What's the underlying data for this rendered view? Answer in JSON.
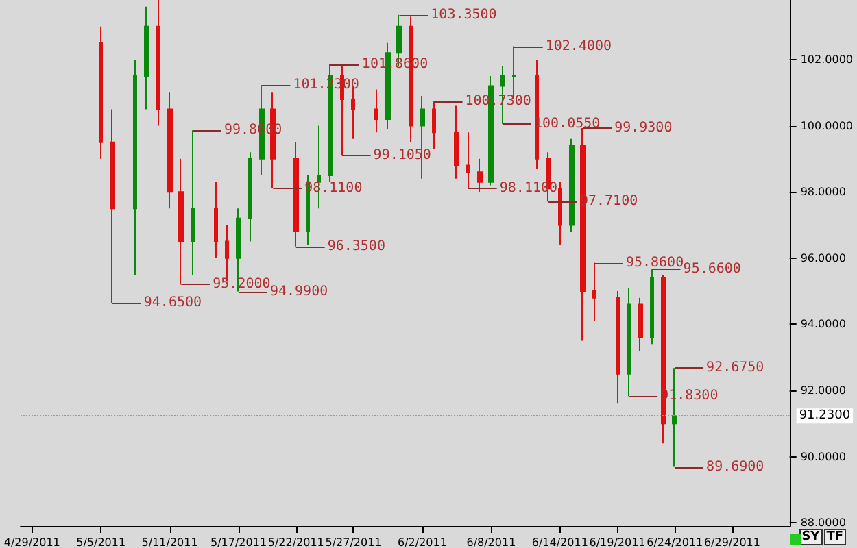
{
  "chart_data": {
    "type": "candlestick",
    "x": [
      "2011-05-05",
      "2011-05-06",
      "2011-05-08",
      "2011-05-09",
      "2011-05-10",
      "2011-05-11",
      "2011-05-12",
      "2011-05-13",
      "2011-05-15",
      "2011-05-16",
      "2011-05-17",
      "2011-05-18",
      "2011-05-19",
      "2011-05-20",
      "2011-05-22",
      "2011-05-23",
      "2011-05-24",
      "2011-05-25",
      "2011-05-26",
      "2011-05-27",
      "2011-05-29",
      "2011-05-30",
      "2011-05-31",
      "2011-06-01",
      "2011-06-02",
      "2011-06-03",
      "2011-06-05",
      "2011-06-06",
      "2011-06-07",
      "2011-06-08",
      "2011-06-09",
      "2011-06-10",
      "2011-06-12",
      "2011-06-13",
      "2011-06-14",
      "2011-06-15",
      "2011-06-16",
      "2011-06-17",
      "2011-06-19",
      "2011-06-20",
      "2011-06-21",
      "2011-06-22",
      "2011-06-23",
      "2011-06-24"
    ],
    "ohlc": [
      [
        102.5,
        103.0,
        99.0,
        99.5
      ],
      [
        99.5,
        100.5,
        94.65,
        97.5
      ],
      [
        97.5,
        102.0,
        95.5,
        101.5
      ],
      [
        101.5,
        103.6,
        100.5,
        103.0
      ],
      [
        103.0,
        103.8,
        100.0,
        100.5
      ],
      [
        100.5,
        101.0,
        97.5,
        98.0
      ],
      [
        98.0,
        99.0,
        95.2,
        96.5
      ],
      [
        96.5,
        99.86,
        95.5,
        97.5
      ],
      [
        97.5,
        98.3,
        96.0,
        96.5
      ],
      [
        96.5,
        97.0,
        95.3,
        96.0
      ],
      [
        96.0,
        97.5,
        94.99,
        97.2
      ],
      [
        97.2,
        99.2,
        96.5,
        99.0
      ],
      [
        99.0,
        101.23,
        98.5,
        100.5
      ],
      [
        100.5,
        101.0,
        98.11,
        99.0
      ],
      [
        99.0,
        99.5,
        96.35,
        96.8
      ],
      [
        96.8,
        98.5,
        96.4,
        98.3
      ],
      [
        98.3,
        100.0,
        97.5,
        98.5
      ],
      [
        98.5,
        101.86,
        98.3,
        101.5
      ],
      [
        101.5,
        101.8,
        99.105,
        100.8
      ],
      [
        100.8,
        101.2,
        99.6,
        100.5
      ],
      [
        100.5,
        101.1,
        99.8,
        100.2
      ],
      [
        100.2,
        102.5,
        99.9,
        102.2
      ],
      [
        102.2,
        103.35,
        101.8,
        103.0
      ],
      [
        103.0,
        103.3,
        99.5,
        100.0
      ],
      [
        100.0,
        100.9,
        98.4,
        100.5
      ],
      [
        100.5,
        100.73,
        99.3,
        99.8
      ],
      [
        99.8,
        100.6,
        98.4,
        98.8
      ],
      [
        98.8,
        99.8,
        98.11,
        98.6
      ],
      [
        98.6,
        99.0,
        98.0,
        98.3
      ],
      [
        98.3,
        101.5,
        98.2,
        101.2
      ],
      [
        101.2,
        101.8,
        100.055,
        101.5
      ],
      [
        101.5,
        102.4,
        100.8,
        101.5
      ],
      [
        101.5,
        102.0,
        98.7,
        99.0
      ],
      [
        99.0,
        99.2,
        97.71,
        98.1
      ],
      [
        98.1,
        98.3,
        96.4,
        97.0
      ],
      [
        97.0,
        99.6,
        96.8,
        99.4
      ],
      [
        99.4,
        99.93,
        93.5,
        95.0
      ],
      [
        95.0,
        95.86,
        94.1,
        94.8
      ],
      [
        94.8,
        95.0,
        91.6,
        92.5
      ],
      [
        92.5,
        95.1,
        91.83,
        94.6
      ],
      [
        94.6,
        94.8,
        93.2,
        93.6
      ],
      [
        93.6,
        95.66,
        93.4,
        95.4
      ],
      [
        95.4,
        95.5,
        90.4,
        91.0
      ],
      [
        91.0,
        92.675,
        89.69,
        91.23
      ]
    ],
    "xlim": [
      "2011-04-28",
      "2011-07-04"
    ],
    "xticks": [
      {
        "value": "2011-04-29",
        "label": "4/29/2011"
      },
      {
        "value": "2011-05-05",
        "label": "5/5/2011"
      },
      {
        "value": "2011-05-11",
        "label": "5/11/2011"
      },
      {
        "value": "2011-05-17",
        "label": "5/17/2011"
      },
      {
        "value": "2011-05-22",
        "label": "5/22/2011"
      },
      {
        "value": "2011-05-27",
        "label": "5/27/2011"
      },
      {
        "value": "2011-06-02",
        "label": "6/2/2011"
      },
      {
        "value": "2011-06-08",
        "label": "6/8/2011"
      },
      {
        "value": "2011-06-14",
        "label": "6/14/2011"
      },
      {
        "value": "2011-06-19",
        "label": "6/19/2011"
      },
      {
        "value": "2011-06-24",
        "label": "6/24/2011"
      },
      {
        "value": "2011-06-29",
        "label": "6/29/2011"
      }
    ],
    "ylim": [
      87.9,
      103.8
    ],
    "yticks": [
      {
        "value": 88,
        "label": "88.0000"
      },
      {
        "value": 90,
        "label": "90.0000"
      },
      {
        "value": 92,
        "label": "92.0000"
      },
      {
        "value": 94,
        "label": "94.0000"
      },
      {
        "value": 96,
        "label": "96.0000"
      },
      {
        "value": 98,
        "label": "98.0000"
      },
      {
        "value": 100,
        "label": "100.0000"
      },
      {
        "value": 102,
        "label": "102.0000"
      }
    ],
    "ref_lines": [
      {
        "axis": "y",
        "value": 91.23,
        "label": "91.2300"
      }
    ],
    "annotations": [
      {
        "text": "94.6500",
        "x": "2011-05-06",
        "y": 94.65
      },
      {
        "text": "95.2000",
        "x": "2011-05-12",
        "y": 95.2
      },
      {
        "text": "99.8600",
        "x": "2011-05-13",
        "y": 99.86
      },
      {
        "text": "94.9900",
        "x": "2011-05-17",
        "y": 94.99
      },
      {
        "text": "101.2300",
        "x": "2011-05-19",
        "y": 101.23
      },
      {
        "text": "98.1100",
        "x": "2011-05-20",
        "y": 98.11
      },
      {
        "text": "96.3500",
        "x": "2011-05-22",
        "y": 96.35
      },
      {
        "text": "101.8600",
        "x": "2011-05-25",
        "y": 101.86
      },
      {
        "text": "99.1050",
        "x": "2011-05-26",
        "y": 99.105
      },
      {
        "text": "103.3500",
        "x": "2011-05-31",
        "y": 103.35
      },
      {
        "text": "100.7300",
        "x": "2011-06-03",
        "y": 100.73
      },
      {
        "text": "98.1100",
        "x": "2011-06-06",
        "y": 98.11
      },
      {
        "text": "102.4000",
        "x": "2011-06-10",
        "y": 102.4
      },
      {
        "text": "100.0550",
        "x": "2011-06-09",
        "y": 100.055
      },
      {
        "text": "97.7100",
        "x": "2011-06-13",
        "y": 97.71
      },
      {
        "text": "99.9300",
        "x": "2011-06-16",
        "y": 99.93
      },
      {
        "text": "95.8600",
        "x": "2011-06-17",
        "y": 95.86
      },
      {
        "text": "91.8300",
        "x": "2011-06-20",
        "y": 91.83
      },
      {
        "text": "95.6600",
        "x": "2011-06-22",
        "y": 95.66
      },
      {
        "text": "92.6750",
        "x": "2011-06-24",
        "y": 92.675
      },
      {
        "text": "89.6900",
        "x": "2011-06-24",
        "y": 89.69
      },
      "SY",
      "TF"
    ]
  }
}
